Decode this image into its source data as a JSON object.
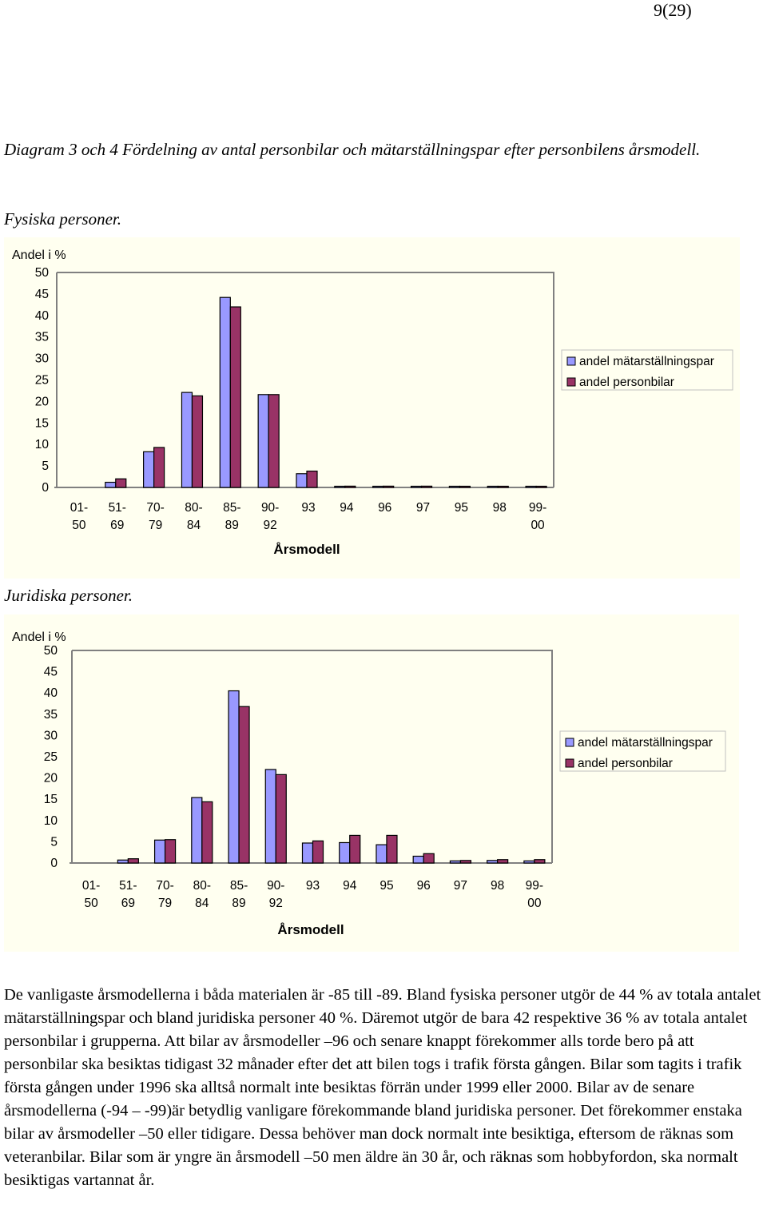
{
  "page": {
    "number": "9(29)"
  },
  "caption": {
    "title": "Diagram 3 och 4 Fördelning av antal personbilar och mätarställningspar efter personbilens årsmodell.",
    "subtitle1": "Fysiska personer.",
    "subtitle2": "Juridiska personer."
  },
  "chart_data": [
    {
      "type": "bar",
      "title": "Fysiska personer.",
      "ylabel": "Andel i %",
      "xlabel": "Årsmodell",
      "ylim": [
        0,
        50
      ],
      "yticks": [
        "0",
        "5",
        "10",
        "15",
        "20",
        "25",
        "30",
        "35",
        "40",
        "45",
        "50"
      ],
      "categories": [
        [
          "01-",
          "50"
        ],
        [
          "51-",
          "69"
        ],
        [
          "70-",
          "79"
        ],
        [
          "80-",
          "84"
        ],
        [
          "85-",
          "89"
        ],
        [
          "90-",
          "92"
        ],
        [
          "93"
        ],
        [
          "94"
        ],
        [
          "96"
        ],
        [
          "97"
        ],
        [
          "95"
        ],
        [
          "98"
        ],
        [
          "99-",
          "00"
        ]
      ],
      "legend": [
        "andel mätarställningspar",
        "andel personbilar"
      ],
      "series": [
        {
          "name": "andel mätarställningspar",
          "color": "#9999ff",
          "values": [
            0,
            1.2,
            8.3,
            22.1,
            44.2,
            21.6,
            3.2,
            0.2,
            0.2,
            0.2,
            0.05,
            0.15,
            0.15
          ]
        },
        {
          "name": "andel personbilar",
          "color": "#993366",
          "values": [
            0,
            2.0,
            9.3,
            21.3,
            42.0,
            21.6,
            3.8,
            0.3,
            0.3,
            0.3,
            0.05,
            0.2,
            0.2
          ]
        }
      ]
    },
    {
      "type": "bar",
      "title": "Juridiska personer.",
      "ylabel": "Andel i %",
      "xlabel": "Årsmodell",
      "ylim": [
        0,
        50
      ],
      "yticks": [
        "0",
        "5",
        "10",
        "15",
        "20",
        "25",
        "30",
        "35",
        "40",
        "45",
        "50"
      ],
      "categories": [
        [
          "01-",
          "50"
        ],
        [
          "51-",
          "69"
        ],
        [
          "70-",
          "79"
        ],
        [
          "80-",
          "84"
        ],
        [
          "85-",
          "89"
        ],
        [
          "90-",
          "92"
        ],
        [
          "93"
        ],
        [
          "94"
        ],
        [
          "95"
        ],
        [
          "96"
        ],
        [
          "97"
        ],
        [
          "98"
        ],
        [
          "99-",
          "00"
        ]
      ],
      "legend": [
        "andel mätarställningspar",
        "andel personbilar"
      ],
      "series": [
        {
          "name": "andel mätarställningspar",
          "color": "#9999ff",
          "values": [
            0,
            0.7,
            5.4,
            15.4,
            40.5,
            22.0,
            4.7,
            4.8,
            4.3,
            1.6,
            0.5,
            0.6,
            0.5
          ]
        },
        {
          "name": "andel personbilar",
          "color": "#993366",
          "values": [
            0,
            1.0,
            5.5,
            14.4,
            36.8,
            20.8,
            5.2,
            6.5,
            6.5,
            2.2,
            0.6,
            0.8,
            0.8
          ]
        }
      ]
    }
  ],
  "body": {
    "paragraph": "De vanligaste årsmodellerna i båda materialen är -85 till -89. Bland fysiska personer utgör de 44 % av totala antalet mätarställningspar och bland juridiska personer 40 %. Däremot utgör de bara 42 respektive 36 % av totala antalet personbilar i grupperna. Att bilar av årsmodeller –96 och senare knappt förekommer alls torde bero på att personbilar ska besiktas tidigast 32 månader efter det att bilen togs i trafik första gången. Bilar som tagits i trafik första gången under 1996 ska alltså normalt inte besiktas förrän under 1999 eller 2000. Bilar av de senare årsmodellerna (-94 – -99)är betydlig vanligare förekommande bland juridiska personer. Det förekommer enstaka bilar av årsmodeller –50 eller tidigare. Dessa behöver man dock normalt inte besiktiga, eftersom de räknas som veteranbilar. Bilar som är yngre än årsmodell –50 men äldre än 30 år, och räknas som hobbyfordon, ska normalt besiktigas vartannat år."
  }
}
